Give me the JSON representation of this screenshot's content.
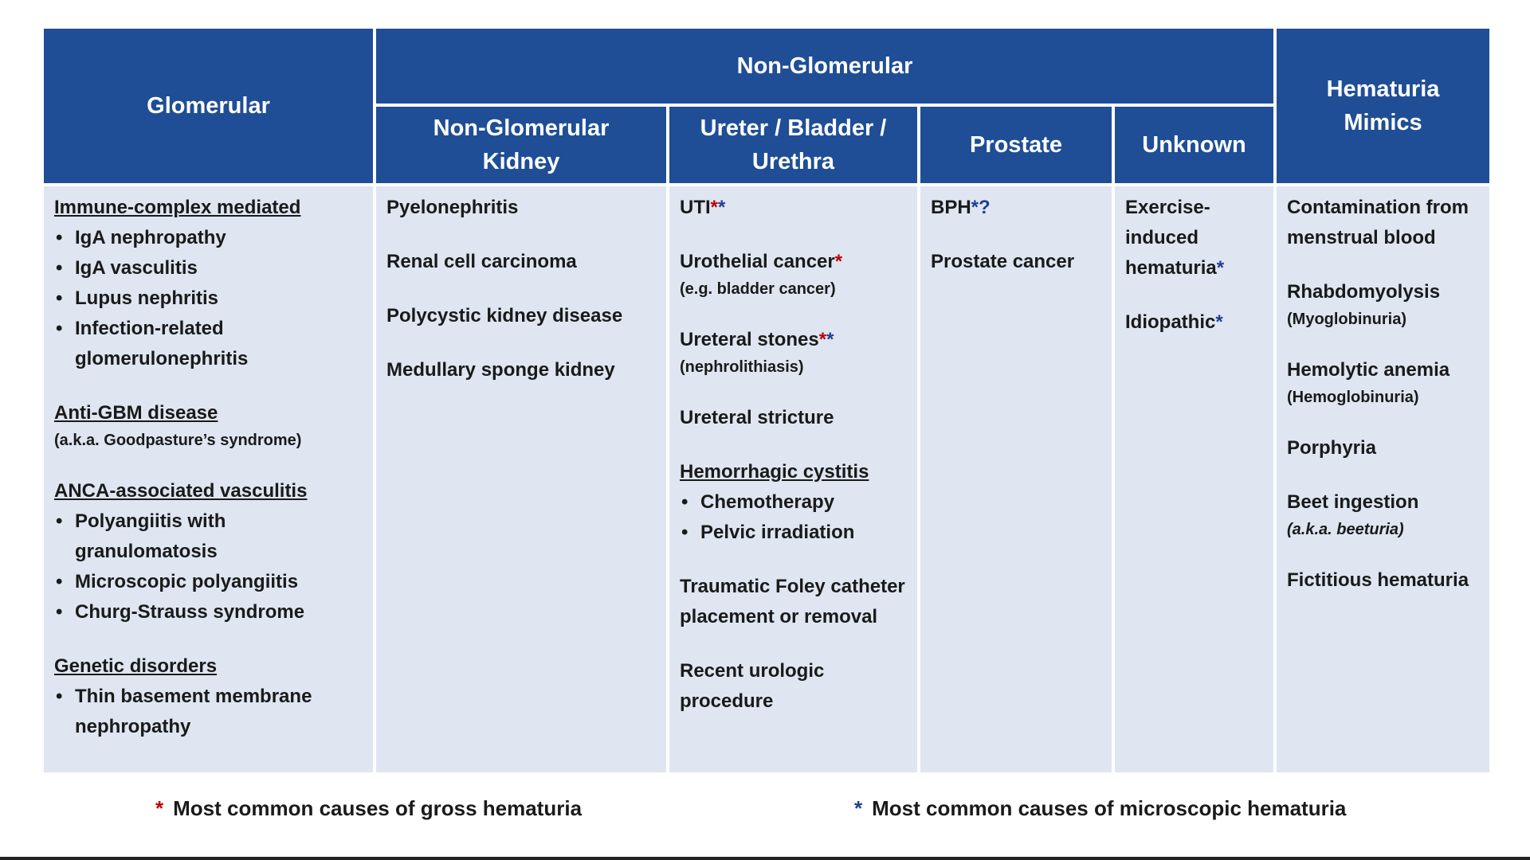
{
  "header": {
    "glomerular": "Glomerular",
    "non_glomerular": "Non-Glomerular",
    "subheaders": [
      "Non-Glomerular Kidney",
      "Ureter / Bladder / Urethra",
      "Prostate",
      "Unknown"
    ],
    "mimics": "Hematuria Mimics"
  },
  "columns": [
    [
      [
        {
          "kind": "heading",
          "text": "Immune-complex mediated"
        },
        {
          "kind": "bullet",
          "text": "IgA nephropathy"
        },
        {
          "kind": "bullet",
          "text": "IgA vasculitis"
        },
        {
          "kind": "bullet",
          "text": "Lupus nephritis"
        },
        {
          "kind": "bullet",
          "text": "Infection-related glomerulonephritis"
        }
      ],
      [
        {
          "kind": "heading",
          "text": "Anti-GBM disease"
        },
        {
          "kind": "note",
          "text": "(a.k.a. Goodpasture’s syndrome)"
        }
      ],
      [
        {
          "kind": "heading",
          "text": "ANCA-associated vasculitis"
        },
        {
          "kind": "bullet",
          "text": "Polyangiitis with granulomatosis"
        },
        {
          "kind": "bullet",
          "text": "Microscopic polyangiitis"
        },
        {
          "kind": "bullet",
          "text": "Churg-Strauss syndrome"
        }
      ],
      [
        {
          "kind": "heading",
          "text": "Genetic disorders"
        },
        {
          "kind": "bullet",
          "text": "Thin basement membrane nephropathy"
        }
      ]
    ],
    [
      [
        {
          "kind": "text",
          "text": "Pyelonephritis"
        }
      ],
      [
        {
          "kind": "text",
          "text": "Renal cell carcinoma"
        }
      ],
      [
        {
          "kind": "text",
          "text": "Polycystic kidney disease"
        }
      ],
      [
        {
          "kind": "text",
          "text": "Medullary sponge kidney"
        }
      ]
    ],
    [
      [
        {
          "kind": "text",
          "text": "UTI",
          "marks": [
            {
              "text": "*",
              "color": "#c00000"
            },
            {
              "text": "*",
              "color": "#1f3f8f"
            }
          ]
        }
      ],
      [
        {
          "kind": "text",
          "text": "Urothelial cancer",
          "marks": [
            {
              "text": "*",
              "color": "#c00000"
            }
          ]
        },
        {
          "kind": "note",
          "text": "(e.g. bladder cancer)"
        }
      ],
      [
        {
          "kind": "text",
          "text": "Ureteral stones",
          "marks": [
            {
              "text": "*",
              "color": "#c00000"
            },
            {
              "text": "*",
              "color": "#1f3f8f"
            }
          ]
        },
        {
          "kind": "note",
          "text": "(nephrolithiasis)"
        }
      ],
      [
        {
          "kind": "text",
          "text": "Ureteral stricture"
        }
      ],
      [
        {
          "kind": "heading",
          "text": "Hemorrhagic cystitis"
        },
        {
          "kind": "bullet",
          "text": "Chemotherapy"
        },
        {
          "kind": "bullet",
          "text": "Pelvic irradiation"
        }
      ],
      [
        {
          "kind": "text",
          "text": "Traumatic Foley catheter placement or removal"
        }
      ],
      [
        {
          "kind": "text",
          "text": "Recent urologic procedure"
        }
      ]
    ],
    [
      [
        {
          "kind": "text",
          "text": "BPH",
          "marks": [
            {
              "text": "*",
              "color": "#1f3f8f"
            },
            {
              "text": "?",
              "color": "#1f3f8f"
            }
          ]
        }
      ],
      [
        {
          "kind": "text",
          "text": "Prostate cancer"
        }
      ]
    ],
    [
      [
        {
          "kind": "text",
          "text": "Exercise-induced hematuria",
          "marks": [
            {
              "text": "*",
              "color": "#1f3f8f"
            }
          ]
        }
      ],
      [
        {
          "kind": "text",
          "text": "Idiopathic",
          "marks": [
            {
              "text": "*",
              "color": "#1f3f8f"
            }
          ]
        }
      ]
    ],
    [
      [
        {
          "kind": "text",
          "text": "Contamination from menstrual blood"
        }
      ],
      [
        {
          "kind": "text",
          "text": "Rhabdomyolysis"
        },
        {
          "kind": "note",
          "text": "(Myoglobinuria)"
        }
      ],
      [
        {
          "kind": "text",
          "text": "Hemolytic anemia"
        },
        {
          "kind": "note",
          "text": "(Hemoglobinuria)"
        }
      ],
      [
        {
          "kind": "text",
          "text": "Porphyria"
        }
      ],
      [
        {
          "kind": "text",
          "text": "Beet ingestion"
        },
        {
          "kind": "note-italic",
          "text": "(a.k.a. beeturia)"
        }
      ],
      [
        {
          "kind": "text",
          "text": "Fictitious hematuria"
        }
      ]
    ]
  ],
  "legend": [
    {
      "mark": "*",
      "color": "#c00000",
      "text": "Most common causes of gross hematuria"
    },
    {
      "mark": "*",
      "color": "#1f3f8f",
      "text": "Most common causes of microscopic hematuria"
    }
  ]
}
